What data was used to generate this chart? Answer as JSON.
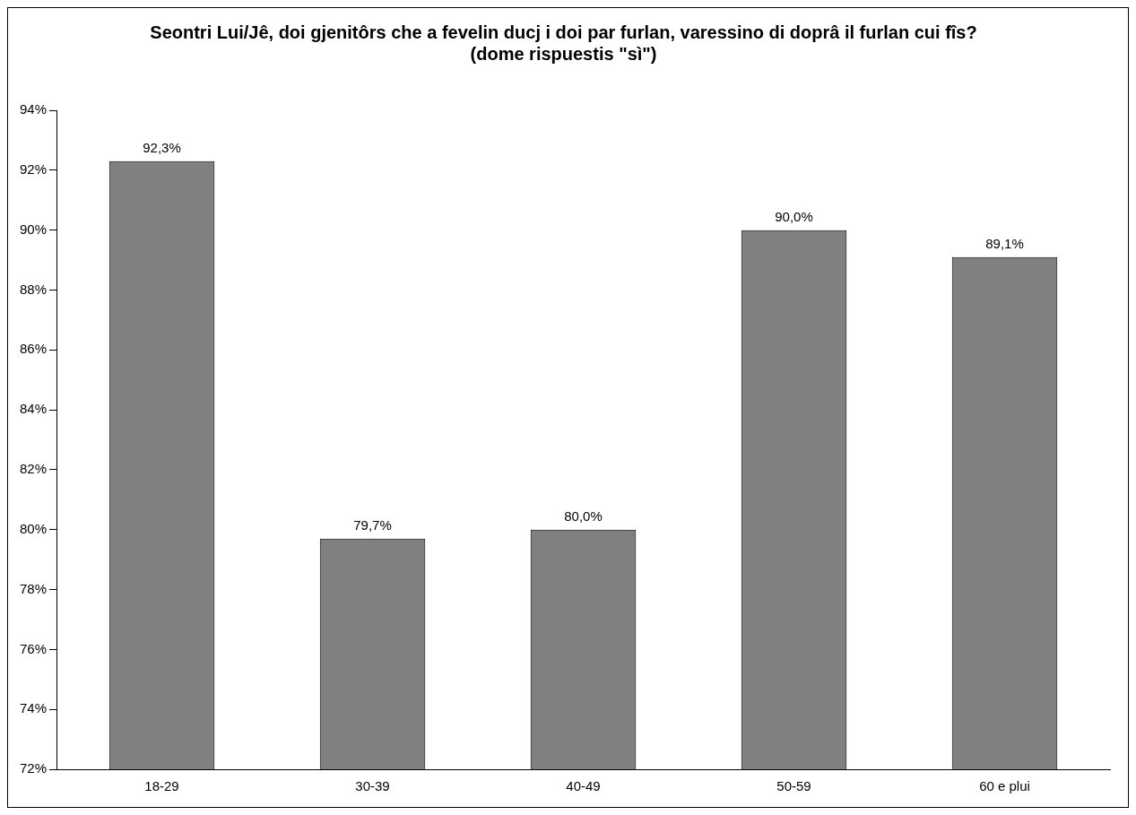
{
  "chart_data": {
    "type": "bar",
    "title": "Seontri Lui/Jê, doi gjenitôrs che a fevelin ducj i doi par furlan, varessino di doprâ il furlan cui fîs?\n(dome rispuestis \"sì\")",
    "categories": [
      "18-29",
      "30-39",
      "40-49",
      "50-59",
      "60 e plui"
    ],
    "values": [
      92.3,
      79.7,
      80.0,
      90.0,
      89.1
    ],
    "value_labels": [
      "92,3%",
      "79,7%",
      "80,0%",
      "90,0%",
      "89,1%"
    ],
    "color": "#808080",
    "ylim": [
      72,
      94
    ],
    "yticks": [
      {
        "value": 72,
        "label": "72%"
      },
      {
        "value": 74,
        "label": "74%"
      },
      {
        "value": 76,
        "label": "76%"
      },
      {
        "value": 78,
        "label": "78%"
      },
      {
        "value": 80,
        "label": "80%"
      },
      {
        "value": 82,
        "label": "82%"
      },
      {
        "value": 84,
        "label": "84%"
      },
      {
        "value": 86,
        "label": "86%"
      },
      {
        "value": 88,
        "label": "88%"
      },
      {
        "value": 90,
        "label": "90%"
      },
      {
        "value": 92,
        "label": "92%"
      },
      {
        "value": 94,
        "label": "94%"
      }
    ],
    "grid": false,
    "legend": false
  }
}
